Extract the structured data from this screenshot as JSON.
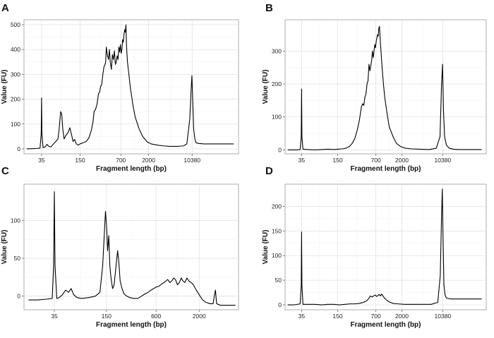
{
  "chart_data": [
    {
      "panel": "A",
      "type": "line",
      "xlabel": "Fragment length (bp)",
      "ylabel": "Value (FU)",
      "xscale": "log",
      "xticks": [
        {
          "v": 35,
          "label": "35"
        },
        {
          "v": 150,
          "label": "150"
        },
        {
          "v": 700,
          "label": "700"
        },
        {
          "v": 2000,
          "label": "2000"
        },
        {
          "v": 10380,
          "label": "10380"
        }
      ],
      "xlim": [
        18,
        60000
      ],
      "yticks": [
        0,
        100,
        200,
        300,
        400,
        500
      ],
      "ylim": [
        -20,
        520
      ],
      "grid": true,
      "points": [
        [
          20,
          0
        ],
        [
          26,
          1
        ],
        [
          30,
          2
        ],
        [
          33,
          3
        ],
        [
          34.5,
          60
        ],
        [
          35,
          205
        ],
        [
          35.5,
          60
        ],
        [
          37,
          5
        ],
        [
          40,
          8
        ],
        [
          43,
          18
        ],
        [
          46,
          10
        ],
        [
          50,
          8
        ],
        [
          55,
          20
        ],
        [
          60,
          30
        ],
        [
          65,
          40
        ],
        [
          68,
          80
        ],
        [
          72,
          150
        ],
        [
          75,
          140
        ],
        [
          78,
          80
        ],
        [
          82,
          40
        ],
        [
          88,
          55
        ],
        [
          95,
          65
        ],
        [
          102,
          85
        ],
        [
          108,
          60
        ],
        [
          115,
          30
        ],
        [
          122,
          38
        ],
        [
          130,
          20
        ],
        [
          140,
          15
        ],
        [
          150,
          20
        ],
        [
          170,
          25
        ],
        [
          190,
          30
        ],
        [
          210,
          45
        ],
        [
          230,
          75
        ],
        [
          245,
          110
        ],
        [
          255,
          150
        ],
        [
          270,
          160
        ],
        [
          285,
          180
        ],
        [
          300,
          220
        ],
        [
          315,
          230
        ],
        [
          325,
          250
        ],
        [
          340,
          260
        ],
        [
          355,
          300
        ],
        [
          370,
          330
        ],
        [
          385,
          340
        ],
        [
          395,
          350
        ],
        [
          405,
          410
        ],
        [
          420,
          380
        ],
        [
          440,
          360
        ],
        [
          455,
          400
        ],
        [
          470,
          350
        ],
        [
          490,
          320
        ],
        [
          510,
          380
        ],
        [
          530,
          360
        ],
        [
          550,
          395
        ],
        [
          570,
          340
        ],
        [
          590,
          350
        ],
        [
          610,
          375
        ],
        [
          630,
          360
        ],
        [
          650,
          410
        ],
        [
          670,
          390
        ],
        [
          690,
          420
        ],
        [
          710,
          385
        ],
        [
          730,
          400
        ],
        [
          750,
          440
        ],
        [
          770,
          430
        ],
        [
          790,
          460
        ],
        [
          810,
          480
        ],
        [
          830,
          470
        ],
        [
          850,
          500
        ],
        [
          870,
          410
        ],
        [
          900,
          350
        ],
        [
          950,
          300
        ],
        [
          1000,
          250
        ],
        [
          1100,
          180
        ],
        [
          1200,
          130
        ],
        [
          1400,
          80
        ],
        [
          1600,
          50
        ],
        [
          1900,
          28
        ],
        [
          2200,
          20
        ],
        [
          2800,
          15
        ],
        [
          3500,
          12
        ],
        [
          4500,
          10
        ],
        [
          6000,
          10
        ],
        [
          7500,
          12
        ],
        [
          8500,
          20
        ],
        [
          9500,
          120
        ],
        [
          10000,
          240
        ],
        [
          10300,
          295
        ],
        [
          10600,
          200
        ],
        [
          11000,
          80
        ],
        [
          11500,
          40
        ],
        [
          12000,
          25
        ],
        [
          13000,
          22
        ],
        [
          16000,
          20
        ],
        [
          25000,
          20
        ],
        [
          50000,
          20
        ]
      ]
    },
    {
      "panel": "B",
      "type": "line",
      "xlabel": "Fragment length (bp)",
      "ylabel": "Value (FU)",
      "xscale": "log",
      "xticks": [
        {
          "v": 35,
          "label": "35"
        },
        {
          "v": 150,
          "label": "150"
        },
        {
          "v": 700,
          "label": "700"
        },
        {
          "v": 2000,
          "label": "2000"
        },
        {
          "v": 10380,
          "label": "10380"
        }
      ],
      "xlim": [
        18,
        60000
      ],
      "yticks": [
        0,
        100,
        200,
        300
      ],
      "ylim": [
        -12,
        395
      ],
      "grid": true,
      "points": [
        [
          20,
          0
        ],
        [
          28,
          0
        ],
        [
          33,
          1
        ],
        [
          34.5,
          40
        ],
        [
          35,
          185
        ],
        [
          35.5,
          40
        ],
        [
          37,
          2
        ],
        [
          45,
          1
        ],
        [
          60,
          0
        ],
        [
          80,
          1
        ],
        [
          100,
          2
        ],
        [
          130,
          1
        ],
        [
          150,
          2
        ],
        [
          180,
          3
        ],
        [
          210,
          5
        ],
        [
          240,
          10
        ],
        [
          270,
          20
        ],
        [
          300,
          35
        ],
        [
          330,
          60
        ],
        [
          360,
          90
        ],
        [
          390,
          130
        ],
        [
          410,
          140
        ],
        [
          430,
          135
        ],
        [
          450,
          160
        ],
        [
          470,
          170
        ],
        [
          490,
          200
        ],
        [
          510,
          210
        ],
        [
          530,
          260
        ],
        [
          550,
          240
        ],
        [
          570,
          255
        ],
        [
          590,
          270
        ],
        [
          610,
          300
        ],
        [
          630,
          280
        ],
        [
          650,
          300
        ],
        [
          670,
          320
        ],
        [
          690,
          310
        ],
        [
          710,
          330
        ],
        [
          730,
          340
        ],
        [
          750,
          350
        ],
        [
          770,
          345
        ],
        [
          790,
          370
        ],
        [
          810,
          375
        ],
        [
          830,
          340
        ],
        [
          860,
          300
        ],
        [
          900,
          250
        ],
        [
          950,
          200
        ],
        [
          1000,
          160
        ],
        [
          1100,
          110
        ],
        [
          1200,
          70
        ],
        [
          1400,
          40
        ],
        [
          1600,
          20
        ],
        [
          1900,
          10
        ],
        [
          2300,
          5
        ],
        [
          3000,
          3
        ],
        [
          4000,
          2
        ],
        [
          6000,
          1
        ],
        [
          8000,
          5
        ],
        [
          9300,
          40
        ],
        [
          9900,
          200
        ],
        [
          10300,
          260
        ],
        [
          10700,
          120
        ],
        [
          11200,
          40
        ],
        [
          12000,
          15
        ],
        [
          13500,
          5
        ],
        [
          16000,
          2
        ],
        [
          20000,
          1
        ],
        [
          30000,
          1
        ],
        [
          50000,
          1
        ]
      ]
    },
    {
      "panel": "C",
      "type": "line",
      "xlabel": "Fragment length (bp)",
      "ylabel": "Value (FU)",
      "xscale": "log",
      "xticks": [
        {
          "v": 35,
          "label": "35"
        },
        {
          "v": 150,
          "label": "150"
        },
        {
          "v": 600,
          "label": "600"
        },
        {
          "v": 2000,
          "label": "2000"
        }
      ],
      "xlim": [
        15,
        6000
      ],
      "yticks": [
        0,
        50,
        100
      ],
      "ylim": [
        -18,
        148
      ],
      "grid": true,
      "points": [
        [
          17,
          -5
        ],
        [
          22,
          -5
        ],
        [
          28,
          -4
        ],
        [
          33,
          -3
        ],
        [
          34.3,
          40
        ],
        [
          35,
          138
        ],
        [
          35.7,
          40
        ],
        [
          37.5,
          -3
        ],
        [
          40,
          -2
        ],
        [
          44,
          2
        ],
        [
          48,
          8
        ],
        [
          52,
          5
        ],
        [
          56,
          10
        ],
        [
          60,
          2
        ],
        [
          66,
          -2
        ],
        [
          75,
          -3
        ],
        [
          90,
          -2
        ],
        [
          110,
          0
        ],
        [
          125,
          5
        ],
        [
          135,
          40
        ],
        [
          141,
          80
        ],
        [
          146,
          112
        ],
        [
          151,
          90
        ],
        [
          155,
          60
        ],
        [
          160,
          80
        ],
        [
          165,
          40
        ],
        [
          170,
          25
        ],
        [
          178,
          10
        ],
        [
          186,
          15
        ],
        [
          196,
          40
        ],
        [
          205,
          60
        ],
        [
          212,
          45
        ],
        [
          220,
          20
        ],
        [
          232,
          10
        ],
        [
          245,
          3
        ],
        [
          265,
          0
        ],
        [
          290,
          -2
        ],
        [
          320,
          -3
        ],
        [
          360,
          -3
        ],
        [
          400,
          0
        ],
        [
          440,
          3
        ],
        [
          480,
          5
        ],
        [
          520,
          8
        ],
        [
          560,
          10
        ],
        [
          600,
          12
        ],
        [
          650,
          13
        ],
        [
          700,
          16
        ],
        [
          750,
          18
        ],
        [
          790,
          20
        ],
        [
          830,
          22
        ],
        [
          880,
          18
        ],
        [
          930,
          20
        ],
        [
          980,
          24
        ],
        [
          1030,
          22
        ],
        [
          1090,
          15
        ],
        [
          1150,
          18
        ],
        [
          1210,
          24
        ],
        [
          1270,
          20
        ],
        [
          1340,
          18
        ],
        [
          1420,
          24
        ],
        [
          1500,
          20
        ],
        [
          1600,
          18
        ],
        [
          1700,
          15
        ],
        [
          1800,
          10
        ],
        [
          1920,
          5
        ],
        [
          2050,
          0
        ],
        [
          2200,
          -5
        ],
        [
          2400,
          -8
        ],
        [
          2700,
          -10
        ],
        [
          2950,
          -10
        ],
        [
          3050,
          0
        ],
        [
          3150,
          8
        ],
        [
          3250,
          -10
        ],
        [
          3600,
          -12
        ],
        [
          4500,
          -12
        ],
        [
          5500,
          -12
        ]
      ]
    },
    {
      "panel": "D",
      "type": "line",
      "xlabel": "Fragment length (bp)",
      "ylabel": "Value (FU)",
      "xscale": "log",
      "xticks": [
        {
          "v": 35,
          "label": "35"
        },
        {
          "v": 150,
          "label": "150"
        },
        {
          "v": 700,
          "label": "700"
        },
        {
          "v": 2000,
          "label": "2000"
        },
        {
          "v": 10380,
          "label": "10380"
        }
      ],
      "xlim": [
        18,
        60000
      ],
      "yticks": [
        0,
        50,
        100,
        150,
        200
      ],
      "ylim": [
        -10,
        245
      ],
      "grid": true,
      "points": [
        [
          20,
          0
        ],
        [
          26,
          0
        ],
        [
          33,
          2
        ],
        [
          34.5,
          40
        ],
        [
          35,
          148
        ],
        [
          35.5,
          40
        ],
        [
          37,
          1
        ],
        [
          45,
          1
        ],
        [
          60,
          1
        ],
        [
          80,
          0
        ],
        [
          100,
          1
        ],
        [
          130,
          1
        ],
        [
          160,
          0
        ],
        [
          200,
          1
        ],
        [
          250,
          2
        ],
        [
          300,
          2
        ],
        [
          360,
          3
        ],
        [
          420,
          5
        ],
        [
          480,
          8
        ],
        [
          520,
          12
        ],
        [
          560,
          18
        ],
        [
          600,
          16
        ],
        [
          640,
          18
        ],
        [
          680,
          20
        ],
        [
          720,
          17
        ],
        [
          760,
          19
        ],
        [
          800,
          21
        ],
        [
          840,
          18
        ],
        [
          880,
          22
        ],
        [
          920,
          19
        ],
        [
          960,
          16
        ],
        [
          1000,
          13
        ],
        [
          1100,
          9
        ],
        [
          1200,
          6
        ],
        [
          1400,
          3
        ],
        [
          1700,
          2
        ],
        [
          2200,
          1
        ],
        [
          3000,
          1
        ],
        [
          4500,
          1
        ],
        [
          6500,
          1
        ],
        [
          8500,
          5
        ],
        [
          9400,
          60
        ],
        [
          9900,
          180
        ],
        [
          10200,
          235
        ],
        [
          10500,
          140
        ],
        [
          10900,
          40
        ],
        [
          11400,
          20
        ],
        [
          12000,
          14
        ],
        [
          14000,
          12
        ],
        [
          20000,
          12
        ],
        [
          30000,
          12
        ],
        [
          50000,
          12
        ]
      ]
    }
  ]
}
